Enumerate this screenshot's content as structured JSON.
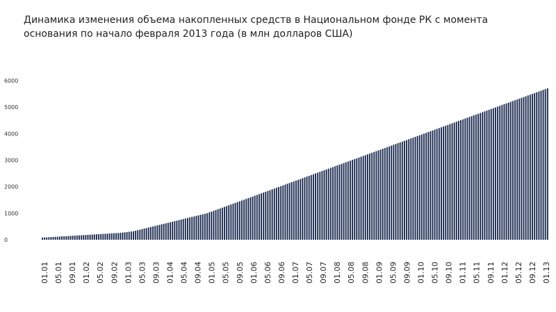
{
  "chart_data": {
    "type": "bar",
    "title": "Динамика изменения объема накопленных средств в Национальном фонде РК с момента основания по начало февраля 2013 года (в млн долларов США)",
    "xlabel": "",
    "ylabel": "",
    "ylim": [
      0,
      6000
    ],
    "yticks": [
      "0",
      "1000",
      "2000",
      "3000",
      "4000",
      "5000",
      "6000"
    ],
    "xtick_labels": [
      "01.01",
      "05.01",
      "09.01",
      "01.02",
      "05.02",
      "09.02",
      "01.03",
      "05.03",
      "09.03",
      "01.04",
      "05.04",
      "09.04",
      "01.05",
      "05.05",
      "09.05",
      "01.06",
      "05.06",
      "09.06",
      "01.07",
      "05.07",
      "09.07",
      "01.08",
      "05.08",
      "09.08",
      "01.09",
      "05.09",
      "09.09",
      "01.10",
      "05.10",
      "09.10",
      "01.11",
      "05.11",
      "09.11",
      "01.12",
      "05.12",
      "09.12",
      "01.13"
    ],
    "grid": false,
    "legend": "none",
    "colors": {
      "bar_dark": "#1a2a4f",
      "bar_light": "#c9d6ec"
    },
    "series": [
      {
        "values": [
          80,
          85,
          90,
          95,
          100,
          105,
          110,
          115,
          120,
          125,
          130,
          135,
          140,
          145,
          150,
          155,
          160,
          165,
          170,
          175,
          180,
          185,
          190,
          195,
          200,
          205,
          210,
          215,
          220,
          225,
          230,
          235,
          240,
          245,
          250,
          255,
          260,
          270,
          280,
          290,
          300,
          310,
          320,
          340,
          360,
          380,
          400,
          420,
          440,
          460,
          480,
          500,
          520,
          540,
          560,
          580,
          600,
          620,
          640,
          660,
          680,
          700,
          720,
          740,
          760,
          780,
          800,
          820,
          840,
          860,
          880,
          900,
          920,
          940,
          960,
          980,
          1000,
          1030,
          1060,
          1090,
          1120,
          1150,
          1180,
          1210,
          1240,
          1270,
          1300,
          1330,
          1360,
          1390,
          1420,
          1450,
          1480,
          1510,
          1540,
          1570,
          1600,
          1630,
          1660,
          1690,
          1720,
          1750,
          1780,
          1810,
          1840,
          1870,
          1900,
          1930,
          1960,
          1990,
          2020,
          2050,
          2080,
          2110,
          2140,
          2170,
          2200,
          2230,
          2260,
          2290,
          2320,
          2350,
          2380,
          2410,
          2440,
          2470,
          2500,
          2530,
          2560,
          2590,
          2620,
          2650,
          2680,
          2710,
          2740,
          2770,
          2800,
          2830,
          2860,
          2890,
          2920,
          2950,
          2980,
          3010,
          3040,
          3070,
          3100,
          3130,
          3160,
          3190,
          3220,
          3250,
          3280,
          3310,
          3340,
          3370,
          3400,
          3430,
          3460,
          3490,
          3520,
          3550,
          3580,
          3610,
          3640,
          3670,
          3700,
          3730,
          3760,
          3790,
          3820,
          3850,
          3880,
          3910,
          3940,
          3970,
          4000,
          4030,
          4060,
          4090,
          4120,
          4150,
          4180,
          4210,
          4240,
          4270,
          4300,
          4330,
          4360,
          4390,
          4420,
          4450,
          4480,
          4510,
          4540,
          4570,
          4600,
          4630,
          4660,
          4690,
          4720,
          4750,
          4780,
          4810,
          4840,
          4870,
          4900,
          4930,
          4960,
          4990,
          5020,
          5050,
          5080,
          5110,
          5140,
          5170,
          5200,
          5230,
          5260,
          5290,
          5320,
          5350,
          5380,
          5410,
          5440,
          5470,
          5500,
          5530,
          5560,
          5590,
          5620,
          5650,
          5680,
          5710
        ]
      }
    ]
  }
}
